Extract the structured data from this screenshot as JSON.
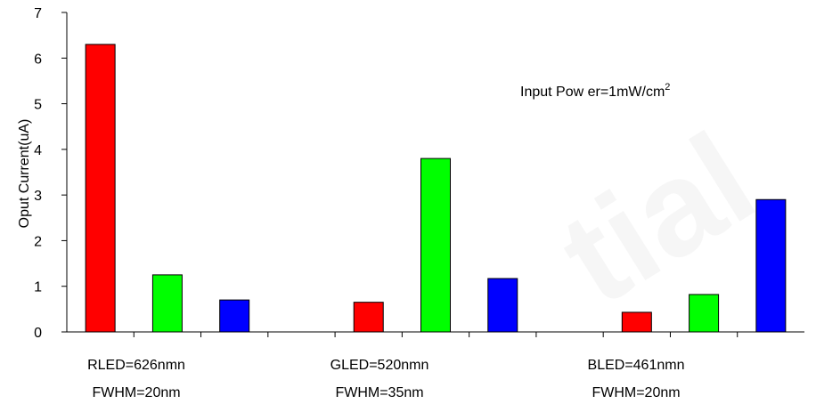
{
  "chart_data": {
    "type": "bar",
    "ylabel": "Oput Current(uA)",
    "ylim": [
      0,
      7
    ],
    "yticks": [
      0,
      1,
      2,
      3,
      4,
      5,
      6,
      7
    ],
    "grid": false,
    "legend": "none",
    "annotation": {
      "text": "Input Pow er=1mW/cm",
      "superscript": "2"
    },
    "groups": [
      {
        "label_line1": "RLED=626nmn",
        "label_line2": "FWHM=20nm",
        "values": [
          6.3,
          1.25,
          0.7
        ]
      },
      {
        "label_line1": "GLED=520nmn",
        "label_line2": "FWHM=35nm",
        "values": [
          0.65,
          3.8,
          1.17
        ]
      },
      {
        "label_line1": "BLED=461nmn",
        "label_line2": "FWHM=20nm",
        "values": [
          0.43,
          0.82,
          2.9
        ]
      }
    ],
    "bar_colors": [
      "#ff0000",
      "#00ff00",
      "#0000ff"
    ]
  },
  "watermark": "tial"
}
